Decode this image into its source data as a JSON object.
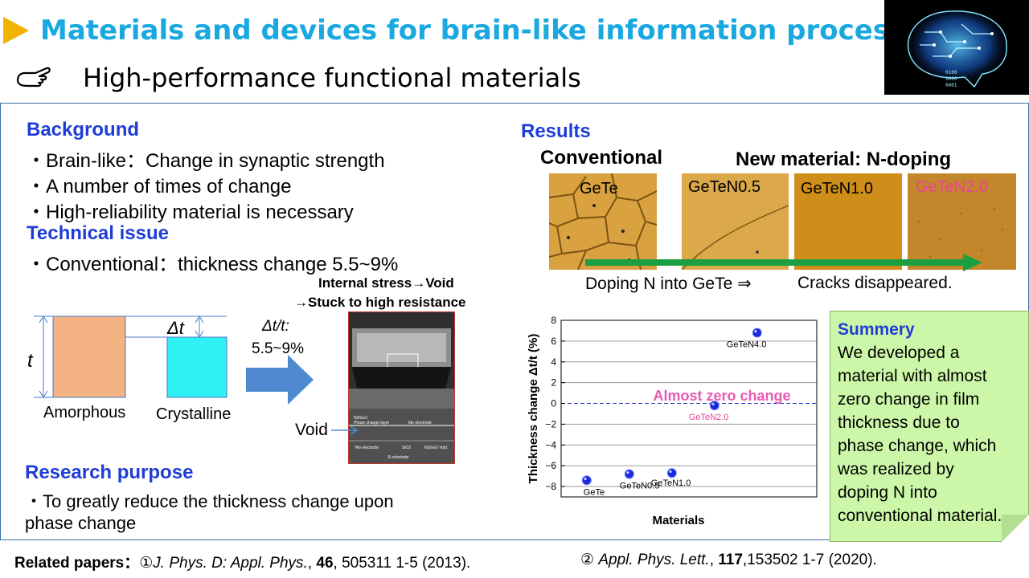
{
  "header": {
    "title": "Materials and devices for brain-like information processing",
    "subtitle": "High-performance functional materials",
    "title_color": "#1aa8e0",
    "arrow_color": "#f2b200",
    "pointer_icon": "pointing-hand-icon",
    "brain_text": [
      "0100",
      "1000",
      "0001"
    ]
  },
  "background": {
    "heading": "Background",
    "items": [
      "・Brain-like：Change in synaptic strength",
      "・A number of times of change",
      "・High-reliability material is necessary"
    ]
  },
  "technical_issue": {
    "heading": "Technical issue",
    "items": [
      "・Conventional：thickness change 5.5~9%"
    ]
  },
  "thickness_diagram": {
    "t_label": "t",
    "dt_label": "Δt",
    "amorphous_label": "Amorphous",
    "crystalline_label": "Crystalline",
    "ratio_label": "Δt/t:",
    "ratio_value": "5.5~9%",
    "stress_line1": "Internal stress→Void",
    "stress_line2": "→Stuck to high resistance",
    "void_label": "Void",
    "amorphous_color": "#f2b282",
    "crystalline_color": "#2ff0f2",
    "arrow_color": "#4f8ad0"
  },
  "sem": {
    "label1": "Ni2Ge3",
    "label2": "Phase change layer",
    "label3": "Mo electrode",
    "label4": "Mo electrode",
    "label5": "SiO2",
    "label6": "Ni2Ge3 Void",
    "label7": "Si substrate"
  },
  "research_purpose": {
    "heading": "Research purpose",
    "line1": "・To greatly reduce the thickness change upon",
    "line2": "phase change"
  },
  "results": {
    "heading": "Results",
    "conventional_label": "Conventional",
    "new_label": "New material: N-doping",
    "tiles": [
      "GeTe",
      "GeTeN0.5",
      "GeTeN1.0",
      "GeTeN2.0"
    ],
    "doping_text": "Doping N into GeTe ⇒",
    "cracks_text": "Cracks disappeared.",
    "arrow_color": "#1aa043",
    "highlight_color": "#e8449a"
  },
  "chart_data": {
    "type": "scatter",
    "ylabel": "Thickness change Δt/t (%)",
    "xlabel": "Materials",
    "ylim": [
      -9,
      8
    ],
    "yticks": [
      8,
      6,
      4,
      2,
      0,
      -2,
      -4,
      -6,
      -8
    ],
    "ytick_labels": [
      "8",
      "6",
      "4",
      "2",
      "0",
      "−2",
      "−4",
      "−6",
      "−8"
    ],
    "grid": true,
    "points": [
      {
        "label": "GeTe",
        "x": 1,
        "y": -7.4
      },
      {
        "label": "GeTeN0.5",
        "x": 2,
        "y": -6.8
      },
      {
        "label": "GeTeN1.0",
        "x": 3,
        "y": -6.7
      },
      {
        "label": "GeTeN2.0",
        "x": 4,
        "y": -0.2
      },
      {
        "label": "GeTeN4.0",
        "x": 5,
        "y": 6.8
      }
    ],
    "annotation": "Almost zero change",
    "annotation_color": "#e85ab4",
    "marker_color": "#1a2ad8"
  },
  "summary": {
    "heading": "Summery",
    "lines": [
      "We developed a",
      "material with almost",
      "zero change in film",
      "thickness due to",
      "phase change, which",
      "was realized by",
      "doping N into",
      "conventional material."
    ]
  },
  "references": {
    "prefix": "Related papers：",
    "ref1_num": "①",
    "ref1_journal": "J. Phys. D: Appl. Phys.",
    "ref1_vol": "46",
    "ref1_rest": ", 505311 1-5 (2013).",
    "ref2_num": "②",
    "ref2_journal": "Appl. Phys. Lett.",
    "ref2_vol": "117",
    "ref2_rest": ",153502 1-7 (2020)."
  }
}
